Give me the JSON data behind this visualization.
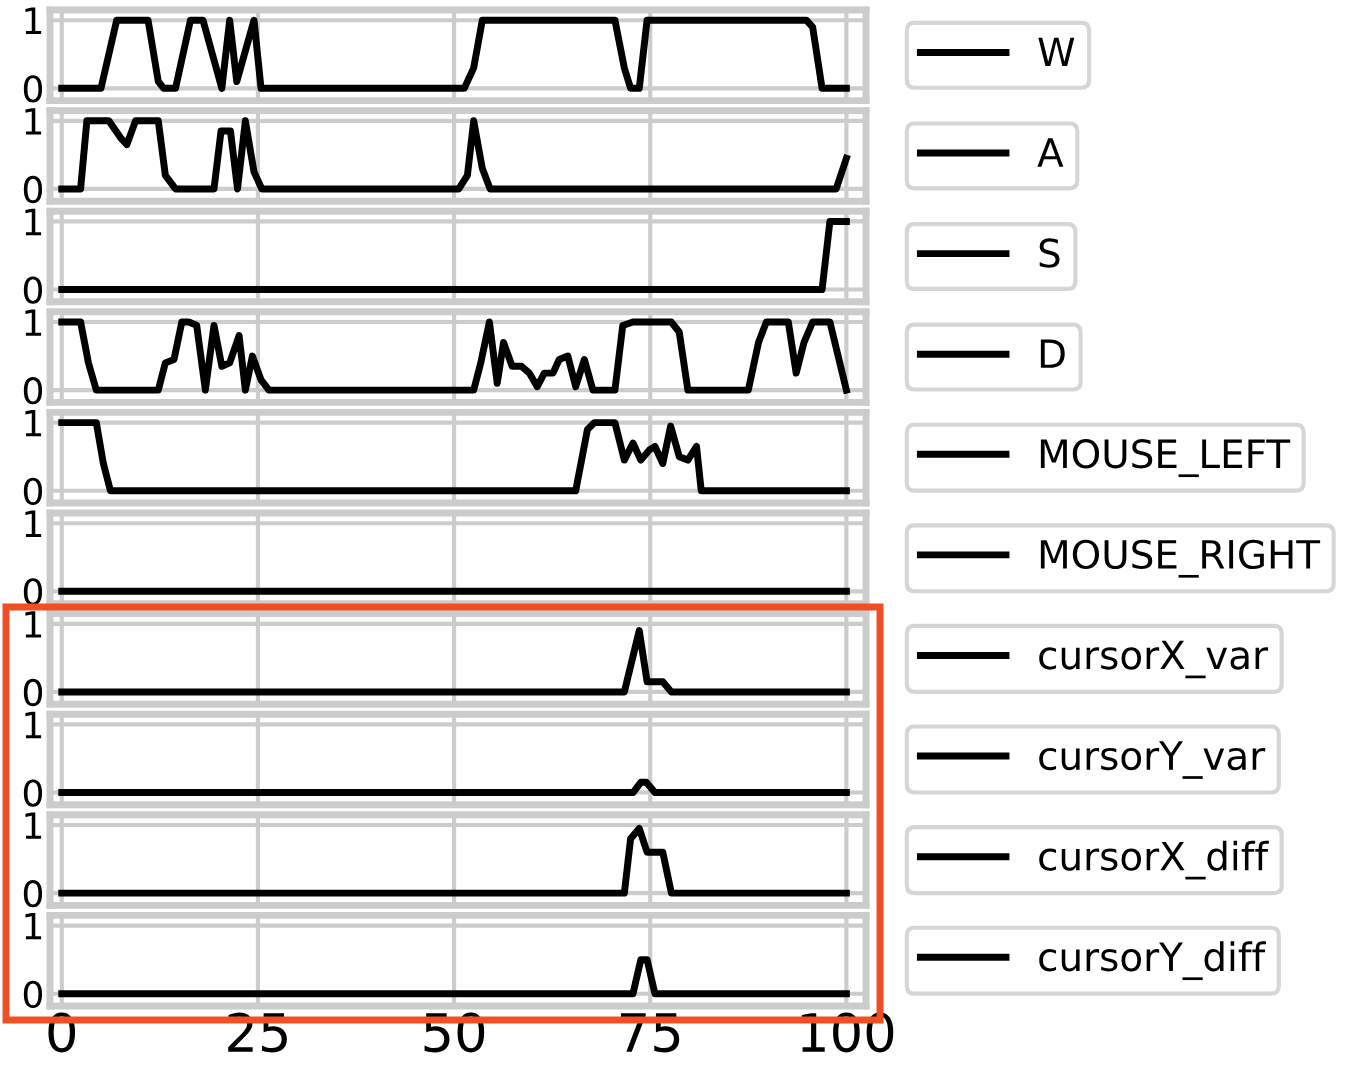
{
  "chart_data": [
    {
      "type": "line",
      "series": [
        {
          "name": "W",
          "color": "#000000",
          "x": [
            0,
            5,
            7,
            11,
            12.3,
            13,
            14.5,
            16.4,
            18,
            20.4,
            21.4,
            22.3,
            24.5,
            25.4,
            51.3,
            52.5,
            53.6,
            70.5,
            71.7,
            72.5,
            73.6,
            74.6,
            94.9,
            95.7,
            96.9,
            100
          ],
          "values": [
            0,
            0,
            1,
            1,
            0.1,
            0,
            0,
            1,
            1,
            0,
            1,
            0.1,
            1,
            0,
            0,
            0.3,
            1,
            1,
            0.3,
            0,
            0,
            1,
            1,
            0.9,
            0,
            0
          ]
        }
      ],
      "xlim": [
        -1.5,
        102.5
      ],
      "xticks": [
        0,
        25,
        50,
        75,
        100
      ],
      "ylim": [
        -0.18,
        1.15
      ],
      "yticks": [
        0,
        1
      ],
      "grid": true,
      "legend": "right",
      "tick_labels": "y"
    },
    {
      "type": "line",
      "series": [
        {
          "name": "A",
          "color": "#000000",
          "x": [
            0,
            2.4,
            3.2,
            6,
            7.5,
            8.3,
            9.4,
            12.3,
            13.2,
            14.5,
            19.4,
            20.3,
            21.5,
            22.4,
            23.4,
            24.5,
            25.5,
            50.6,
            51.7,
            52.5,
            53.6,
            54.6,
            98.7,
            100
          ],
          "values": [
            0,
            0,
            1,
            1,
            0.75,
            0.65,
            1,
            1,
            0.2,
            0,
            0,
            0.85,
            0.85,
            0,
            1,
            0.25,
            0,
            0,
            0.2,
            1,
            0.3,
            0,
            0,
            0.45
          ]
        }
      ],
      "xlim": [
        -1.5,
        102.5
      ],
      "xticks": [
        0,
        25,
        50,
        75,
        100
      ],
      "ylim": [
        -0.18,
        1.15
      ],
      "yticks": [
        0,
        1
      ],
      "grid": true,
      "legend": "right",
      "tick_labels": "y"
    },
    {
      "type": "line",
      "series": [
        {
          "name": "S",
          "color": "#000000",
          "x": [
            0,
            96.9,
            97.9,
            100
          ],
          "values": [
            0,
            0,
            1,
            1
          ]
        }
      ],
      "xlim": [
        -1.5,
        102.5
      ],
      "xticks": [
        0,
        25,
        50,
        75,
        100
      ],
      "ylim": [
        -0.18,
        1.15
      ],
      "yticks": [
        0,
        1
      ],
      "grid": true,
      "legend": "right",
      "tick_labels": "y"
    },
    {
      "type": "line",
      "series": [
        {
          "name": "D",
          "color": "#000000",
          "x": [
            0,
            2.4,
            3.4,
            4.4,
            12.3,
            13.2,
            14.3,
            15.3,
            16.2,
            17.2,
            18.3,
            19.4,
            20.4,
            21.4,
            22.6,
            23.4,
            24.3,
            25.4,
            26.4,
            52.5,
            53.4,
            54.5,
            55.5,
            56.3,
            57.4,
            58.6,
            59.6,
            60.6,
            61.5,
            62.6,
            63.4,
            64.5,
            65.5,
            66.6,
            67.7,
            70.5,
            71.5,
            72.8,
            77.7,
            78.7,
            79.8,
            87.5,
            88.8,
            89.8,
            92.6,
            93.6,
            94.6,
            95.7,
            97.9,
            100
          ],
          "values": [
            1,
            1,
            0.4,
            0,
            0,
            0.4,
            0.45,
            1,
            1,
            0.95,
            0,
            0.95,
            0.35,
            0.4,
            0.8,
            0,
            0.5,
            0.15,
            0,
            0,
            0.4,
            1,
            0.1,
            0.7,
            0.35,
            0.35,
            0.25,
            0.05,
            0.25,
            0.25,
            0.45,
            0.5,
            0.05,
            0.45,
            0,
            0,
            0.95,
            1,
            1,
            0.85,
            0,
            0,
            0.7,
            1,
            1,
            0.25,
            0.7,
            1,
            1,
            0
          ]
        }
      ],
      "xlim": [
        -1.5,
        102.5
      ],
      "xticks": [
        0,
        25,
        50,
        75,
        100
      ],
      "ylim": [
        -0.18,
        1.15
      ],
      "yticks": [
        0,
        1
      ],
      "grid": true,
      "legend": "right",
      "tick_labels": "y"
    },
    {
      "type": "line",
      "series": [
        {
          "name": "MOUSE_LEFT",
          "color": "#000000",
          "x": [
            0,
            4.4,
            5.3,
            6.2,
            65.5,
            67,
            67.9,
            70.5,
            71.7,
            72.8,
            73.8,
            74.9,
            75.6,
            76.6,
            77.6,
            78.7,
            79.8,
            80.9,
            81.5,
            100
          ],
          "values": [
            1,
            1,
            0.4,
            0,
            0,
            0.9,
            1,
            1,
            0.45,
            0.7,
            0.45,
            0.6,
            0.65,
            0.4,
            0.95,
            0.5,
            0.45,
            0.65,
            0,
            0
          ]
        }
      ],
      "xlim": [
        -1.5,
        102.5
      ],
      "xticks": [
        0,
        25,
        50,
        75,
        100
      ],
      "ylim": [
        -0.18,
        1.15
      ],
      "yticks": [
        0,
        1
      ],
      "grid": true,
      "legend": "right",
      "tick_labels": "y"
    },
    {
      "type": "line",
      "series": [
        {
          "name": "MOUSE_RIGHT",
          "color": "#000000",
          "x": [
            0,
            100
          ],
          "values": [
            0,
            0
          ]
        }
      ],
      "xlim": [
        -1.5,
        102.5
      ],
      "xticks": [
        0,
        25,
        50,
        75,
        100
      ],
      "ylim": [
        -0.18,
        1.15
      ],
      "yticks": [
        0,
        1
      ],
      "grid": true,
      "legend": "right",
      "tick_labels": "y"
    },
    {
      "type": "line",
      "series": [
        {
          "name": "cursorX_var",
          "color": "#000000",
          "x": [
            0,
            71.7,
            73.6,
            74.6,
            76.6,
            77.7,
            100
          ],
          "values": [
            0,
            0,
            0.9,
            0.15,
            0.15,
            0,
            0
          ]
        }
      ],
      "xlim": [
        -1.5,
        102.5
      ],
      "xticks": [
        0,
        25,
        50,
        75,
        100
      ],
      "ylim": [
        -0.18,
        1.15
      ],
      "yticks": [
        0,
        1
      ],
      "grid": true,
      "legend": "right",
      "tick_labels": "y"
    },
    {
      "type": "line",
      "series": [
        {
          "name": "cursorY_var",
          "color": "#000000",
          "x": [
            0,
            72.8,
            73.8,
            74.5,
            75.6,
            100
          ],
          "values": [
            0,
            0,
            0.15,
            0.15,
            0,
            0
          ]
        }
      ],
      "xlim": [
        -1.5,
        102.5
      ],
      "xticks": [
        0,
        25,
        50,
        75,
        100
      ],
      "ylim": [
        -0.18,
        1.15
      ],
      "yticks": [
        0,
        1
      ],
      "grid": true,
      "legend": "right",
      "tick_labels": "y"
    },
    {
      "type": "line",
      "series": [
        {
          "name": "cursorX_diff",
          "color": "#000000",
          "x": [
            0,
            71.7,
            72.5,
            73.6,
            74.6,
            76.6,
            77.7,
            100
          ],
          "values": [
            0,
            0,
            0.8,
            0.95,
            0.6,
            0.6,
            0,
            0
          ]
        }
      ],
      "xlim": [
        -1.5,
        102.5
      ],
      "xticks": [
        0,
        25,
        50,
        75,
        100
      ],
      "ylim": [
        -0.18,
        1.15
      ],
      "yticks": [
        0,
        1
      ],
      "grid": true,
      "legend": "right",
      "tick_labels": "y"
    },
    {
      "type": "line",
      "series": [
        {
          "name": "cursorY_diff",
          "color": "#000000",
          "x": [
            0,
            72.8,
            73.8,
            74.6,
            75.6,
            100
          ],
          "values": [
            0,
            0,
            0.5,
            0.5,
            0,
            0
          ]
        }
      ],
      "xlim": [
        -1.5,
        102.5
      ],
      "xticks": [
        0,
        25,
        50,
        75,
        100
      ],
      "ylim": [
        -0.18,
        1.15
      ],
      "yticks": [
        0,
        1
      ],
      "grid": true,
      "legend": "right"
    }
  ]
}
